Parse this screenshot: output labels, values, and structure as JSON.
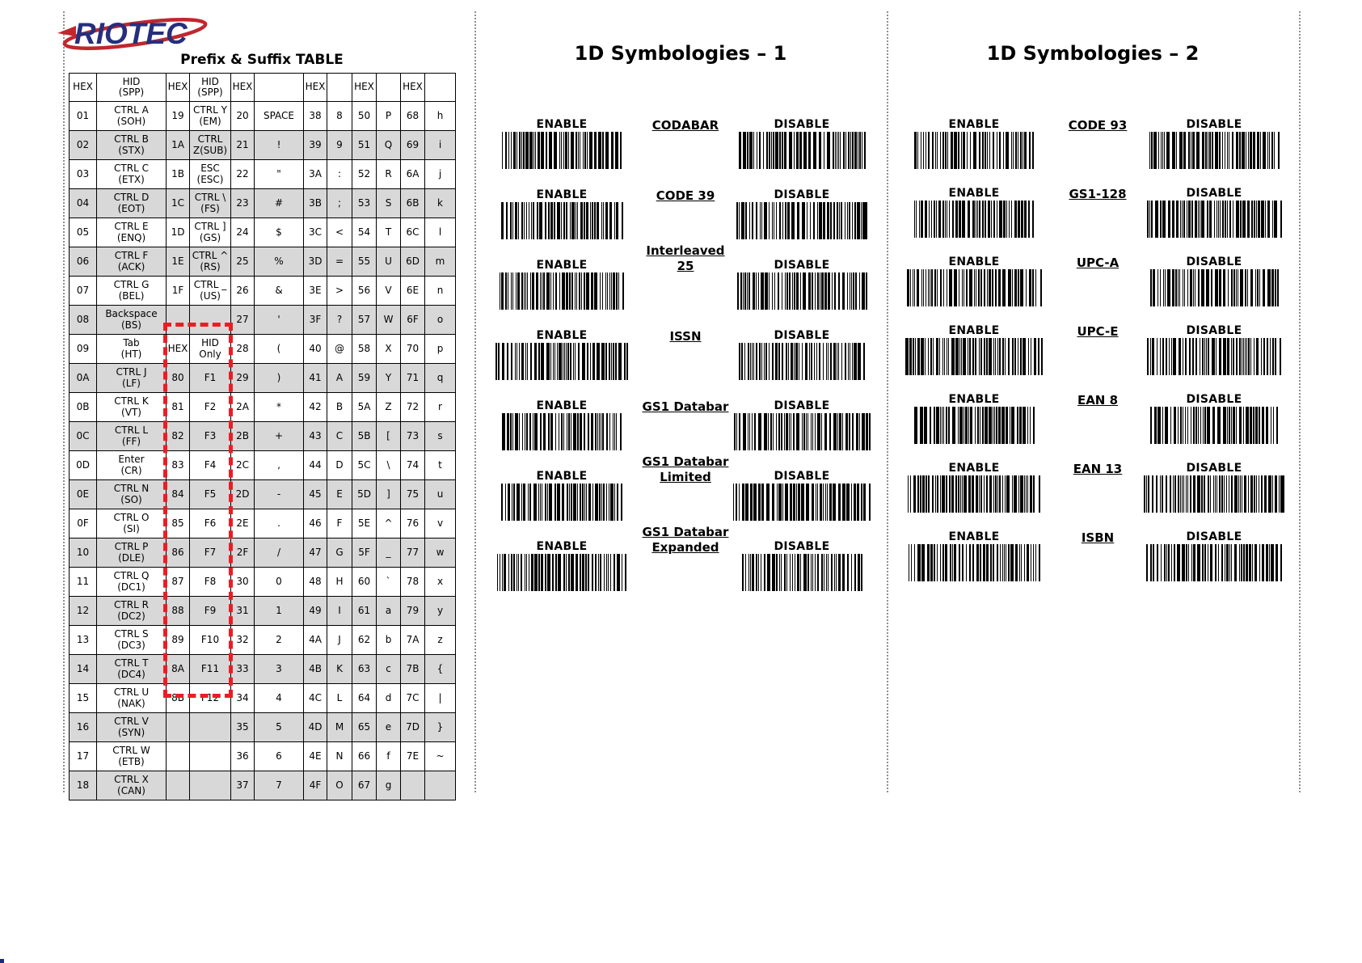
{
  "brand": {
    "logo_text": "RIOTEC"
  },
  "colors": {
    "highlight_dash": "#ed1c24",
    "shaded_row": "#d8d8d8",
    "logo_navy": "#262f7d",
    "logo_red": "#c0272d"
  },
  "prefix_suffix_table": {
    "title": "Prefix & Suffix TABLE",
    "header": [
      "HEX",
      "HID\n(SPP)",
      "HEX",
      "HID\n(SPP)",
      "HEX",
      "",
      "HEX",
      "",
      "HEX",
      "",
      "HEX",
      ""
    ],
    "rows": [
      [
        "01",
        "CTRL A\n(SOH)",
        "19",
        "CTRL Y\n(EM)",
        "20",
        "SPACE",
        "38",
        "8",
        "50",
        "P",
        "68",
        "h"
      ],
      [
        "02",
        "CTRL B\n(STX)",
        "1A",
        "CTRL\nZ(SUB)",
        "21",
        "!",
        "39",
        "9",
        "51",
        "Q",
        "69",
        "i"
      ],
      [
        "03",
        "CTRL C\n(ETX)",
        "1B",
        "ESC\n(ESC)",
        "22",
        "\"",
        "3A",
        ":",
        "52",
        "R",
        "6A",
        "j"
      ],
      [
        "04",
        "CTRL D\n(EOT)",
        "1C",
        "CTRL \\\n(FS)",
        "23",
        "#",
        "3B",
        ";",
        "53",
        "S",
        "6B",
        "k"
      ],
      [
        "05",
        "CTRL E\n(ENQ)",
        "1D",
        "CTRL ]\n(GS)",
        "24",
        "$",
        "3C",
        "<",
        "54",
        "T",
        "6C",
        "l"
      ],
      [
        "06",
        "CTRL F\n(ACK)",
        "1E",
        "CTRL ^\n(RS)",
        "25",
        "%",
        "3D",
        "=",
        "55",
        "U",
        "6D",
        "m"
      ],
      [
        "07",
        "CTRL G\n(BEL)",
        "1F",
        "CTRL _\n(US)",
        "26",
        "&",
        "3E",
        ">",
        "56",
        "V",
        "6E",
        "n"
      ],
      [
        "08",
        "Backspace\n(BS)",
        "",
        "",
        "27",
        "'",
        "3F",
        "?",
        "57",
        "W",
        "6F",
        "o"
      ],
      [
        "09",
        "Tab\n(HT)",
        "HEX",
        "HID\nOnly",
        "28",
        "(",
        "40",
        "@",
        "58",
        "X",
        "70",
        "p"
      ],
      [
        "0A",
        "CTRL J\n(LF)",
        "80",
        "F1",
        "29",
        ")",
        "41",
        "A",
        "59",
        "Y",
        "71",
        "q"
      ],
      [
        "0B",
        "CTRL K\n(VT)",
        "81",
        "F2",
        "2A",
        "*",
        "42",
        "B",
        "5A",
        "Z",
        "72",
        "r"
      ],
      [
        "0C",
        "CTRL L\n(FF)",
        "82",
        "F3",
        "2B",
        "+",
        "43",
        "C",
        "5B",
        "[",
        "73",
        "s"
      ],
      [
        "0D",
        "Enter\n(CR)",
        "83",
        "F4",
        "2C",
        ",",
        "44",
        "D",
        "5C",
        "\\",
        "74",
        "t"
      ],
      [
        "0E",
        "CTRL N\n(SO)",
        "84",
        "F5",
        "2D",
        "-",
        "45",
        "E",
        "5D",
        "]",
        "75",
        "u"
      ],
      [
        "0F",
        "CTRL O\n(SI)",
        "85",
        "F6",
        "2E",
        ".",
        "46",
        "F",
        "5E",
        "^",
        "76",
        "v"
      ],
      [
        "10",
        "CTRL P\n(DLE)",
        "86",
        "F7",
        "2F",
        "/",
        "47",
        "G",
        "5F",
        "_",
        "77",
        "w"
      ],
      [
        "11",
        "CTRL Q\n(DC1)",
        "87",
        "F8",
        "30",
        "0",
        "48",
        "H",
        "60",
        "`",
        "78",
        "x"
      ],
      [
        "12",
        "CTRL R\n(DC2)",
        "88",
        "F9",
        "31",
        "1",
        "49",
        "I",
        "61",
        "a",
        "79",
        "y"
      ],
      [
        "13",
        "CTRL S\n(DC3)",
        "89",
        "F10",
        "32",
        "2",
        "4A",
        "J",
        "62",
        "b",
        "7A",
        "z"
      ],
      [
        "14",
        "CTRL T\n(DC4)",
        "8A",
        "F11",
        "33",
        "3",
        "4B",
        "K",
        "63",
        "c",
        "7B",
        "{"
      ],
      [
        "15",
        "CTRL U\n(NAK)",
        "8B",
        "F12",
        "34",
        "4",
        "4C",
        "L",
        "64",
        "d",
        "7C",
        "|"
      ],
      [
        "16",
        "CTRL V\n(SYN)",
        "",
        "",
        "35",
        "5",
        "4D",
        "M",
        "65",
        "e",
        "7D",
        "}"
      ],
      [
        "17",
        "CTRL W\n(ETB)",
        "",
        "",
        "36",
        "6",
        "4E",
        "N",
        "66",
        "f",
        "7E",
        "~"
      ],
      [
        "18",
        "CTRL X\n(CAN)",
        "",
        "",
        "37",
        "7",
        "4F",
        "O",
        "67",
        "g",
        "",
        ""
      ]
    ]
  },
  "sections": [
    {
      "title": "1D Symbologies – 1",
      "rows": [
        {
          "name": "CODABAR",
          "enable": "ENABLE",
          "disable": "DISABLE"
        },
        {
          "name": "CODE 39",
          "enable": "ENABLE",
          "disable": "DISABLE"
        },
        {
          "name": "Interleaved\n25",
          "enable": "ENABLE",
          "disable": "DISABLE"
        },
        {
          "name": "ISSN",
          "enable": "ENABLE",
          "disable": "DISABLE"
        },
        {
          "name": "GS1 Databar",
          "enable": "ENABLE",
          "disable": "DISABLE"
        },
        {
          "name": "GS1 Databar\nLimited",
          "enable": "ENABLE",
          "disable": "DISABLE"
        },
        {
          "name": "GS1 Databar\nExpanded",
          "enable": "ENABLE",
          "disable": "DISABLE"
        }
      ]
    },
    {
      "title": "1D Symbologies – 2",
      "rows": [
        {
          "name": "CODE 93",
          "enable": "ENABLE",
          "disable": "DISABLE"
        },
        {
          "name": "GS1-128",
          "enable": "ENABLE",
          "disable": "DISABLE"
        },
        {
          "name": "UPC-A",
          "enable": "ENABLE",
          "disable": "DISABLE"
        },
        {
          "name": "UPC-E",
          "enable": "ENABLE",
          "disable": "DISABLE"
        },
        {
          "name": "EAN 8",
          "enable": "ENABLE",
          "disable": "DISABLE"
        },
        {
          "name": "EAN 13",
          "enable": "ENABLE",
          "disable": "DISABLE"
        },
        {
          "name": "ISBN",
          "enable": "ENABLE",
          "disable": "DISABLE"
        }
      ]
    }
  ]
}
